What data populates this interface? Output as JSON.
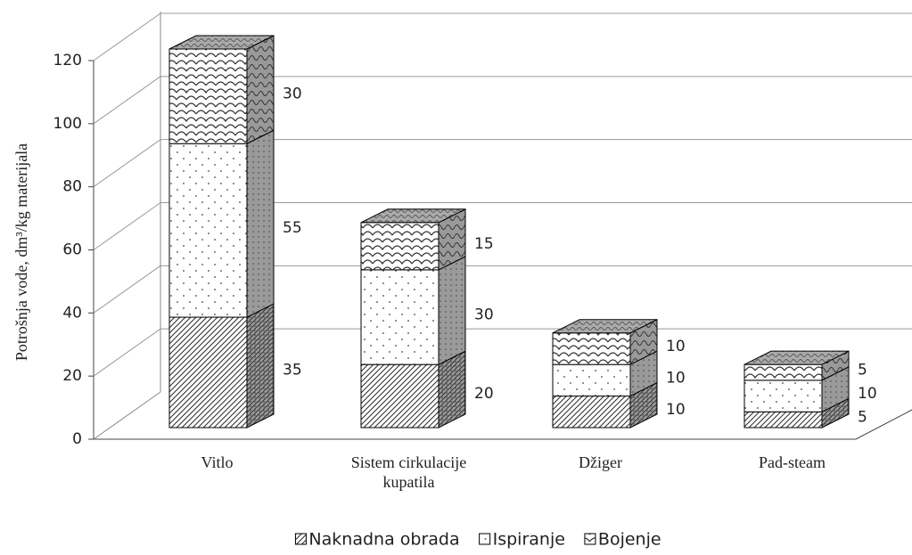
{
  "chart_data": {
    "type": "bar3d_stacked",
    "y_label": "Potrošnja vode, dm³/kg materijala",
    "categories": [
      "Vitlo",
      "Sistem cirkulacije kupatila",
      "Džiger",
      "Pad-steam"
    ],
    "series": [
      {
        "name": "Naknadna obrada",
        "values": [
          35,
          20,
          10,
          5
        ]
      },
      {
        "name": "Ispiranje",
        "values": [
          55,
          30,
          10,
          10
        ]
      },
      {
        "name": "Bojenje",
        "values": [
          30,
          15,
          10,
          5
        ]
      }
    ],
    "ylim": [
      0,
      120
    ],
    "yticks": [
      0,
      20,
      40,
      60,
      80,
      100,
      120
    ],
    "grid": true,
    "legend": "bottom"
  }
}
